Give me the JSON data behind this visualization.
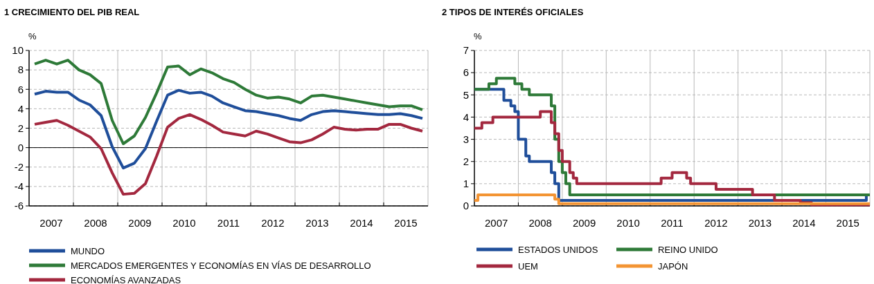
{
  "chart_data": [
    {
      "type": "line",
      "title": "1 CRECIMIENTO DEL PIB REAL",
      "ylabel": "%",
      "xlim": [
        2007,
        2016
      ],
      "ylim": [
        -6,
        10
      ],
      "yticks": [
        -6,
        -4,
        -2,
        0,
        2,
        4,
        6,
        8,
        10
      ],
      "xticks": [
        {
          "value": 2008,
          "label": null
        },
        {
          "value": 2009,
          "label": null
        },
        {
          "value": 2010,
          "label": null
        },
        {
          "value": 2011,
          "label": null
        },
        {
          "value": 2012,
          "label": null
        },
        {
          "value": 2013,
          "label": null
        },
        {
          "value": 2014,
          "label": null
        },
        {
          "value": 2015,
          "label": null
        },
        {
          "value": 2007.5,
          "label": "2007"
        },
        {
          "value": 2008.5,
          "label": "2008"
        },
        {
          "value": 2009.5,
          "label": "2009"
        },
        {
          "value": 2010.5,
          "label": "2010"
        },
        {
          "value": 2011.5,
          "label": "2011"
        },
        {
          "value": 2012.5,
          "label": "2012"
        },
        {
          "value": 2013.5,
          "label": "2013"
        },
        {
          "value": 2014.5,
          "label": "2014"
        },
        {
          "value": 2015.5,
          "label": "2015"
        }
      ],
      "x": [
        2007.125,
        2007.375,
        2007.625,
        2007.875,
        2008.125,
        2008.375,
        2008.625,
        2008.875,
        2009.125,
        2009.375,
        2009.625,
        2009.875,
        2010.125,
        2010.375,
        2010.625,
        2010.875,
        2011.125,
        2011.375,
        2011.625,
        2011.875,
        2012.125,
        2012.375,
        2012.625,
        2012.875,
        2013.125,
        2013.375,
        2013.625,
        2013.875,
        2014.125,
        2014.375,
        2014.625,
        2014.875,
        2015.125,
        2015.375,
        2015.625,
        2015.875
      ],
      "grid": true,
      "legend": "bottom",
      "marker": "none",
      "line_style": "solid",
      "ref_lines": [
        {
          "axis": "y",
          "value": 0,
          "label": null,
          "color": "#000000"
        }
      ],
      "series": [
        {
          "name": "MUNDO",
          "color": "#1f4e9a",
          "values": [
            5.5,
            5.8,
            5.7,
            5.7,
            4.9,
            4.4,
            3.3,
            0.1,
            -2.1,
            -1.6,
            -0.1,
            2.7,
            5.4,
            5.9,
            5.6,
            5.7,
            5.3,
            4.6,
            4.2,
            3.8,
            3.7,
            3.5,
            3.3,
            3.0,
            2.8,
            3.4,
            3.7,
            3.8,
            3.7,
            3.6,
            3.5,
            3.4,
            3.4,
            3.5,
            3.3,
            3.0
          ]
        },
        {
          "name": "MERCADOS EMERGENTES Y ECONOMÍAS EN VÍAS DE DESARROLLO",
          "color": "#2e7a38",
          "values": [
            8.6,
            9.0,
            8.6,
            9.0,
            8.0,
            7.5,
            6.6,
            2.8,
            0.4,
            1.2,
            3.1,
            5.6,
            8.3,
            8.4,
            7.5,
            8.1,
            7.7,
            7.1,
            6.7,
            6.0,
            5.4,
            5.1,
            5.2,
            5.0,
            4.6,
            5.3,
            5.4,
            5.2,
            5.0,
            4.8,
            4.6,
            4.4,
            4.2,
            4.3,
            4.3,
            3.9
          ]
        },
        {
          "name": "ECONOMÍAS AVANZADAS",
          "color": "#a3283f",
          "values": [
            2.4,
            2.6,
            2.8,
            2.3,
            1.7,
            1.1,
            -0.1,
            -2.6,
            -4.8,
            -4.7,
            -3.7,
            -0.9,
            2.1,
            3.0,
            3.4,
            2.9,
            2.3,
            1.6,
            1.4,
            1.2,
            1.7,
            1.4,
            1.0,
            0.6,
            0.5,
            0.8,
            1.4,
            2.1,
            1.9,
            1.8,
            1.9,
            1.9,
            2.4,
            2.4,
            2.0,
            1.7
          ]
        }
      ]
    },
    {
      "type": "step",
      "title": "2 TIPOS DE INTERÉS OFICIALES",
      "ylabel": "%",
      "xlim": [
        2007,
        2016
      ],
      "ylim": [
        0,
        7
      ],
      "yticks": [
        0,
        1,
        2,
        3,
        4,
        5,
        6,
        7
      ],
      "xticks": [
        {
          "value": 2008,
          "label": null
        },
        {
          "value": 2009,
          "label": null
        },
        {
          "value": 2010,
          "label": null
        },
        {
          "value": 2011,
          "label": null
        },
        {
          "value": 2012,
          "label": null
        },
        {
          "value": 2013,
          "label": null
        },
        {
          "value": 2014,
          "label": null
        },
        {
          "value": 2015,
          "label": null
        },
        {
          "value": 2007.5,
          "label": "2007"
        },
        {
          "value": 2008.5,
          "label": "2008"
        },
        {
          "value": 2009.5,
          "label": "2009"
        },
        {
          "value": 2010.5,
          "label": "2010"
        },
        {
          "value": 2011.5,
          "label": "2011"
        },
        {
          "value": 2012.5,
          "label": "2012"
        },
        {
          "value": 2013.5,
          "label": "2013"
        },
        {
          "value": 2014.5,
          "label": "2014"
        },
        {
          "value": 2015.5,
          "label": "2015"
        }
      ],
      "grid": true,
      "legend": "bottom",
      "marker": "none",
      "line_style": "solid",
      "series": [
        {
          "name": "ESTADOS UNIDOS",
          "color": "#1f4e9a",
          "x": [
            2007,
            2007.67,
            2007.83,
            2007.92,
            2008.0,
            2008.17,
            2008.25,
            2008.75,
            2008.83,
            2008.92,
            2015.92,
            2016
          ],
          "values": [
            5.25,
            4.75,
            4.5,
            4.25,
            3.0,
            2.25,
            2.0,
            1.5,
            1.0,
            0.25,
            0.5,
            0.5
          ]
        },
        {
          "name": "REINO UNIDO",
          "color": "#2e7a38",
          "x": [
            2007,
            2007.33,
            2007.5,
            2007.92,
            2008.08,
            2008.25,
            2008.75,
            2008.83,
            2008.92,
            2009.0,
            2009.08,
            2009.17,
            2016
          ],
          "values": [
            5.25,
            5.5,
            5.75,
            5.5,
            5.25,
            5.0,
            4.5,
            3.0,
            2.0,
            1.5,
            1.0,
            0.5,
            0.5
          ]
        },
        {
          "name": "UEM",
          "color": "#a3283f",
          "x": [
            2007,
            2007.17,
            2007.42,
            2008.5,
            2008.75,
            2008.83,
            2008.92,
            2009.0,
            2009.17,
            2009.25,
            2009.33,
            2011.25,
            2011.5,
            2011.83,
            2011.92,
            2012.5,
            2013.33,
            2013.83,
            2014.42,
            2014.67,
            2016
          ],
          "values": [
            3.5,
            3.75,
            4.0,
            4.25,
            3.75,
            3.25,
            2.5,
            2.0,
            1.5,
            1.25,
            1.0,
            1.25,
            1.5,
            1.25,
            1.0,
            0.75,
            0.5,
            0.25,
            0.15,
            0.05,
            0.05
          ]
        },
        {
          "name": "JAPÓN",
          "color": "#f39433",
          "x": [
            2007,
            2007.08,
            2008.83,
            2008.92,
            2016
          ],
          "values": [
            0.25,
            0.5,
            0.3,
            0.1,
            0.1
          ]
        }
      ]
    }
  ]
}
